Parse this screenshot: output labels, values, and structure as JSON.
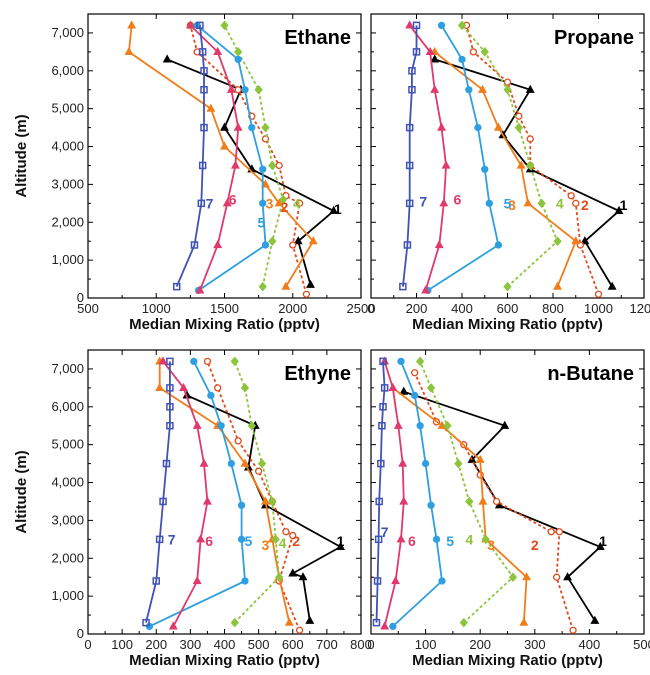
{
  "chart_data": [
    {
      "type": "line",
      "title": "Ethane",
      "xlabel": "Median Mixing Ratio (pptv)",
      "ylabel": "Altitude (m)",
      "xlim": [
        500,
        2500
      ],
      "ylim": [
        0,
        7500
      ],
      "xticks": [
        "500",
        "1000",
        "1500",
        "2000",
        "2500"
      ],
      "yticks": [
        "0",
        "1,000",
        "2,000",
        "3,000",
        "4,000",
        "5,000",
        "6,000",
        "7,000"
      ],
      "series": [
        {
          "name": "1",
          "color": "#000000",
          "marker": "triangle",
          "dash": false,
          "x": [
            2130,
            2040,
            2300,
            1700,
            1500,
            1620,
            1080
          ],
          "y": [
            350,
            1500,
            2300,
            3400,
            4500,
            5500,
            6300
          ]
        },
        {
          "name": "2",
          "color": "#e24a1c",
          "marker": "circle",
          "dash": true,
          "x": [
            2100,
            2000,
            2050,
            1950,
            1900,
            1800,
            1700,
            1600,
            1300,
            1250
          ],
          "y": [
            100,
            1400,
            2500,
            2700,
            3500,
            4200,
            4800,
            5500,
            6500,
            7200
          ]
        },
        {
          "name": "3",
          "color": "#f07d1a",
          "marker": "triangle",
          "dash": false,
          "x": [
            1950,
            2150,
            1900,
            1800,
            1500,
            1400,
            800,
            820
          ],
          "y": [
            300,
            1500,
            2500,
            3000,
            4000,
            5000,
            6500,
            7200
          ]
        },
        {
          "name": "4",
          "color": "#8cc43c",
          "marker": "diamond",
          "dash": true,
          "x": [
            1780,
            1850,
            1930,
            1850,
            1800,
            1750,
            1600,
            1500
          ],
          "y": [
            300,
            1500,
            2600,
            3500,
            4500,
            5500,
            6500,
            7200
          ]
        },
        {
          "name": "5",
          "color": "#2e9fe0",
          "marker": "circle",
          "dash": false,
          "x": [
            1310,
            1800,
            1780,
            1780,
            1700,
            1650,
            1600,
            1300
          ],
          "y": [
            200,
            1400,
            2500,
            3400,
            4500,
            5500,
            6300,
            7200
          ]
        },
        {
          "name": "6",
          "color": "#df3a6b",
          "marker": "triangle",
          "dash": false,
          "x": [
            1320,
            1450,
            1520,
            1580,
            1600,
            1550,
            1450,
            1250
          ],
          "y": [
            200,
            1400,
            2500,
            3500,
            4500,
            5500,
            6500,
            7200
          ]
        },
        {
          "name": "7",
          "color": "#4152b6",
          "marker": "square",
          "dash": false,
          "x": [
            1150,
            1280,
            1330,
            1340,
            1350,
            1350,
            1350,
            1340,
            1320
          ],
          "y": [
            300,
            1400,
            2500,
            3500,
            4500,
            5500,
            6000,
            6500,
            7200
          ]
        }
      ],
      "labels": [
        {
          "text": "1",
          "x": 2330,
          "y": 2350
        },
        {
          "text": "2",
          "x": 1940,
          "y": 2400
        },
        {
          "text": "3",
          "x": 1830,
          "y": 2500
        },
        {
          "text": "4",
          "x": 2030,
          "y": 2500
        },
        {
          "text": "5",
          "x": 1770,
          "y": 2000
        },
        {
          "text": "6",
          "x": 1560,
          "y": 2600
        },
        {
          "text": "7",
          "x": 1390,
          "y": 2500
        }
      ]
    },
    {
      "type": "line",
      "title": "Propane",
      "xlabel": "Median Mixing Ratio (pptv)",
      "ylabel": "",
      "xlim": [
        0,
        1200
      ],
      "ylim": [
        0,
        7500
      ],
      "xticks": [
        "0",
        "200",
        "400",
        "600",
        "800",
        "1000",
        "1200"
      ],
      "yticks": [],
      "series": [
        {
          "name": "1",
          "color": "#000000",
          "marker": "triangle",
          "dash": false,
          "x": [
            1060,
            940,
            1090,
            700,
            580,
            700,
            280
          ],
          "y": [
            300,
            1500,
            2300,
            3400,
            4300,
            5500,
            6300
          ]
        },
        {
          "name": "2",
          "color": "#e24a1c",
          "marker": "circle",
          "dash": true,
          "x": [
            1000,
            920,
            900,
            880,
            700,
            700,
            650,
            600,
            450,
            420
          ],
          "y": [
            100,
            1400,
            2500,
            2700,
            3500,
            4200,
            4800,
            5700,
            6500,
            7200
          ]
        },
        {
          "name": "3",
          "color": "#f07d1a",
          "marker": "triangle",
          "dash": false,
          "x": [
            820,
            900,
            690,
            660,
            560,
            490,
            280
          ],
          "y": [
            300,
            1500,
            2500,
            3500,
            4500,
            5500,
            6500
          ]
        },
        {
          "name": "4",
          "color": "#8cc43c",
          "marker": "diamond",
          "dash": true,
          "x": [
            600,
            820,
            750,
            700,
            650,
            600,
            500,
            400
          ],
          "y": [
            300,
            1500,
            2500,
            3500,
            4500,
            5500,
            6500,
            7200
          ]
        },
        {
          "name": "5",
          "color": "#2e9fe0",
          "marker": "circle",
          "dash": false,
          "x": [
            250,
            560,
            520,
            500,
            470,
            430,
            400,
            310
          ],
          "y": [
            200,
            1400,
            2500,
            3400,
            4500,
            5500,
            6300,
            7200
          ]
        },
        {
          "name": "6",
          "color": "#df3a6b",
          "marker": "triangle",
          "dash": false,
          "x": [
            240,
            300,
            320,
            330,
            310,
            280,
            260,
            170
          ],
          "y": [
            200,
            1400,
            2500,
            3500,
            4500,
            5500,
            6500,
            7200
          ]
        },
        {
          "name": "7",
          "color": "#4152b6",
          "marker": "square",
          "dash": false,
          "x": [
            140,
            160,
            170,
            170,
            170,
            180,
            180,
            200,
            200
          ],
          "y": [
            300,
            1400,
            2500,
            3500,
            4500,
            5500,
            6000,
            6500,
            7200
          ]
        }
      ],
      "labels": [
        {
          "text": "1",
          "x": 1110,
          "y": 2450
        },
        {
          "text": "2",
          "x": 940,
          "y": 2450
        },
        {
          "text": "3",
          "x": 620,
          "y": 2450
        },
        {
          "text": "4",
          "x": 830,
          "y": 2500
        },
        {
          "text": "5",
          "x": 600,
          "y": 2500
        },
        {
          "text": "6",
          "x": 380,
          "y": 2600
        },
        {
          "text": "7",
          "x": 230,
          "y": 2550
        }
      ]
    },
    {
      "type": "line",
      "title": "Ethyne",
      "xlabel": "Median Mixing Ratio (pptv)",
      "ylabel": "Altitude (m)",
      "xlim": [
        0,
        800
      ],
      "ylim": [
        0,
        7500
      ],
      "xticks": [
        "0",
        "100",
        "200",
        "300",
        "400",
        "500",
        "600",
        "700",
        "800"
      ],
      "yticks": [
        "0",
        "1,000",
        "2,000",
        "3,000",
        "4,000",
        "5,000",
        "6,000",
        "7,000"
      ],
      "series": [
        {
          "name": "1",
          "color": "#000000",
          "marker": "triangle",
          "dash": false,
          "x": [
            650,
            630,
            600,
            740,
            520,
            470,
            490,
            290
          ],
          "y": [
            350,
            1500,
            1600,
            2300,
            3400,
            4400,
            5500,
            6300
          ]
        },
        {
          "name": "2",
          "color": "#e24a1c",
          "marker": "circle",
          "dash": true,
          "x": [
            620,
            560,
            600,
            580,
            540,
            500,
            440,
            380,
            350
          ],
          "y": [
            100,
            1400,
            2600,
            2700,
            3500,
            4300,
            5100,
            6500,
            7200
          ]
        },
        {
          "name": "3",
          "color": "#f07d1a",
          "marker": "triangle",
          "dash": false,
          "x": [
            590,
            560,
            540,
            520,
            460,
            380,
            210,
            210
          ],
          "y": [
            300,
            1500,
            2500,
            3500,
            4500,
            5500,
            6500,
            7200
          ]
        },
        {
          "name": "4",
          "color": "#8cc43c",
          "marker": "diamond",
          "dash": true,
          "x": [
            430,
            560,
            550,
            540,
            510,
            480,
            460,
            430
          ],
          "y": [
            300,
            1500,
            2500,
            3500,
            4500,
            5500,
            6500,
            7200
          ]
        },
        {
          "name": "5",
          "color": "#2e9fe0",
          "marker": "circle",
          "dash": false,
          "x": [
            180,
            460,
            450,
            450,
            420,
            390,
            360,
            310
          ],
          "y": [
            200,
            1400,
            2500,
            3400,
            4500,
            5500,
            6300,
            7200
          ]
        },
        {
          "name": "6",
          "color": "#df3a6b",
          "marker": "triangle",
          "dash": false,
          "x": [
            250,
            320,
            330,
            350,
            340,
            320,
            280,
            220
          ],
          "y": [
            200,
            1400,
            2500,
            3500,
            4500,
            5500,
            6500,
            7200
          ]
        },
        {
          "name": "7",
          "color": "#4152b6",
          "marker": "square",
          "dash": false,
          "x": [
            170,
            200,
            210,
            220,
            230,
            240,
            240,
            240,
            240
          ],
          "y": [
            300,
            1400,
            2500,
            3500,
            4500,
            5500,
            6000,
            6500,
            7200
          ]
        }
      ],
      "labels": [
        {
          "text": "1",
          "x": 740,
          "y": 2450
        },
        {
          "text": "2",
          "x": 610,
          "y": 2450
        },
        {
          "text": "3",
          "x": 520,
          "y": 2350
        },
        {
          "text": "4",
          "x": 570,
          "y": 2400
        },
        {
          "text": "5",
          "x": 470,
          "y": 2450
        },
        {
          "text": "6",
          "x": 355,
          "y": 2450
        },
        {
          "text": "7",
          "x": 245,
          "y": 2500
        }
      ]
    },
    {
      "type": "line",
      "title": "n-Butane",
      "xlabel": "Median Mixing Ratio (pptv)",
      "ylabel": "",
      "xlim": [
        0,
        500
      ],
      "ylim": [
        0,
        7500
      ],
      "xticks": [
        "0",
        "100",
        "200",
        "300",
        "400",
        "500"
      ],
      "yticks": [],
      "series": [
        {
          "name": "1",
          "color": "#000000",
          "marker": "triangle",
          "dash": false,
          "x": [
            410,
            360,
            420,
            235,
            185,
            245,
            60
          ],
          "y": [
            350,
            1500,
            2300,
            3400,
            4600,
            5500,
            6400
          ]
        },
        {
          "name": "2",
          "color": "#e24a1c",
          "marker": "circle",
          "dash": true,
          "x": [
            370,
            340,
            345,
            330,
            230,
            200,
            170,
            120,
            80
          ],
          "y": [
            100,
            1500,
            2700,
            2700,
            3500,
            4200,
            5000,
            5600,
            6900
          ]
        },
        {
          "name": "3",
          "color": "#f07d1a",
          "marker": "triangle",
          "dash": false,
          "x": [
            280,
            285,
            210,
            205,
            200,
            130,
            40
          ],
          "y": [
            300,
            1500,
            2500,
            3500,
            4600,
            5500,
            6500
          ]
        },
        {
          "name": "4",
          "color": "#8cc43c",
          "marker": "diamond",
          "dash": true,
          "x": [
            170,
            260,
            210,
            180,
            160,
            140,
            110,
            90
          ],
          "y": [
            300,
            1500,
            2500,
            3500,
            4500,
            5500,
            6500,
            7200
          ]
        },
        {
          "name": "5",
          "color": "#2e9fe0",
          "marker": "circle",
          "dash": false,
          "x": [
            40,
            130,
            120,
            110,
            100,
            90,
            80,
            55
          ],
          "y": [
            200,
            1400,
            2500,
            3400,
            4500,
            5500,
            6300,
            7200
          ]
        },
        {
          "name": "6",
          "color": "#df3a6b",
          "marker": "triangle",
          "dash": false,
          "x": [
            25,
            45,
            55,
            60,
            58,
            50,
            40,
            25
          ],
          "y": [
            200,
            1400,
            2500,
            3500,
            4500,
            5500,
            6500,
            7200
          ]
        },
        {
          "name": "7",
          "color": "#4152b6",
          "marker": "square",
          "dash": false,
          "x": [
            10,
            12,
            14,
            15,
            18,
            20,
            22,
            25,
            22
          ],
          "y": [
            300,
            1400,
            2500,
            3500,
            4500,
            5500,
            6000,
            6500,
            7200
          ]
        }
      ],
      "labels": [
        {
          "text": "1",
          "x": 425,
          "y": 2450
        },
        {
          "text": "2",
          "x": 300,
          "y": 2350
        },
        {
          "text": "3",
          "x": 220,
          "y": 2350
        },
        {
          "text": "4",
          "x": 180,
          "y": 2500
        },
        {
          "text": "5",
          "x": 145,
          "y": 2450
        },
        {
          "text": "6",
          "x": 75,
          "y": 2450
        },
        {
          "text": "7",
          "x": 25,
          "y": 2700
        }
      ]
    }
  ]
}
